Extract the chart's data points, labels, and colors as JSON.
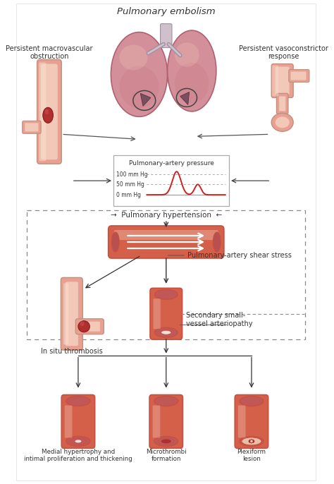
{
  "title": "Pulmonary embolism",
  "bg_color": "#ffffff",
  "vessel_outer": "#e8a090",
  "vessel_inner": "#d4604a",
  "vessel_light": "#f2c8b8",
  "vessel_wall": "#c85040",
  "vessel_mid": "#e07060",
  "thrombus_color": "#b03030",
  "lung_outer": "#d4909a",
  "lung_inner": "#c87880",
  "lung_outline": "#b06070",
  "lung_hilum": "#c0a0b0",
  "arrow_color": "#333333",
  "dashed_color": "#888888",
  "pressure_line": "#cc2222",
  "text_color": "#333333",
  "label_title": "Pulmonary embolism",
  "label_left1": "Persistent macrovascular",
  "label_left2": "obstruction",
  "label_right1": "Persistent vasoconstrictor",
  "label_right2": "response",
  "label_pressure": "Pulmonary-artery pressure",
  "label_100": "100 mm Hg",
  "label_50": "50 mm Hg",
  "label_0": "0 mm Hg",
  "label_hypertension": "Pulmonary hypertension",
  "label_shear": "Pulmonary-artery shear stress",
  "label_situ": "In situ thrombosis",
  "label_secondary": "Secondary small-\nvessel arteriopathy",
  "label_medial": "Medial hypertrophy and\nintimal proliferation and thickening",
  "label_micro": "Microthrombi\nformation",
  "label_plexi": "Plexiform\nlesion",
  "white": "#ffffff",
  "light_pink": "#f5ddd8",
  "dark_red": "#8b1a1a"
}
